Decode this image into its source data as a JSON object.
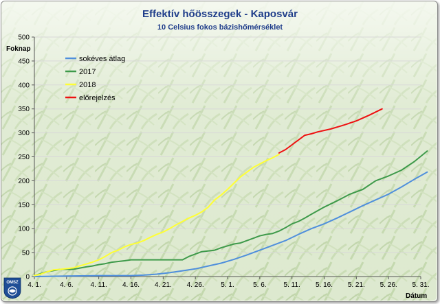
{
  "header": {
    "title": "Effektív hőösszegek - Kaposvár",
    "subtitle": "10 Celsius fokos bázishőmérséklet"
  },
  "logo": {
    "text": "OMSZ"
  },
  "colors": {
    "background": "#f3f6ef",
    "corn_light": "#d4e3c2",
    "corn_dark": "#bcd2a6",
    "grid": "#d8d8d8"
  },
  "chart_data": {
    "type": "line",
    "title": "Effektív hőösszegek - Kaposvár",
    "subtitle": "10 Celsius fokos bázishőmérséklet",
    "xlabel": "Dátum",
    "ylabel": "Foknap",
    "ylim": [
      0,
      500
    ],
    "yticks": [
      0,
      50,
      100,
      150,
      200,
      250,
      300,
      350,
      400,
      450,
      500
    ],
    "y_tick_labels": [
      "0",
      "50",
      "100",
      "150",
      "200",
      "250",
      "300",
      "350",
      "400",
      "450",
      "500"
    ],
    "x_domain_days": [
      0,
      60
    ],
    "xticks": [
      0,
      5,
      10,
      15,
      20,
      25,
      30,
      35,
      40,
      45,
      50,
      55,
      60
    ],
    "x_tick_labels": [
      "4. 1.",
      "4. 6.",
      "4. 11.",
      "4. 16.",
      "4. 21.",
      "4. 26.",
      "5. 1.",
      "5. 6.",
      "5. 11.",
      "5. 16.",
      "5. 21.",
      "5. 26.",
      "5. 31."
    ],
    "grid": "horizontal",
    "legend_position": "top-left",
    "series": [
      {
        "name": "sokéves átlag",
        "color": "#4f8fdc",
        "points": [
          [
            0,
            0
          ],
          [
            5,
            1
          ],
          [
            10,
            2
          ],
          [
            15,
            2
          ],
          [
            17,
            3
          ],
          [
            19,
            5
          ],
          [
            21,
            8
          ],
          [
            23,
            12
          ],
          [
            25,
            16
          ],
          [
            27,
            22
          ],
          [
            29,
            28
          ],
          [
            31,
            36
          ],
          [
            33,
            45
          ],
          [
            35,
            55
          ],
          [
            37,
            65
          ],
          [
            39,
            75
          ],
          [
            41,
            88
          ],
          [
            43,
            100
          ],
          [
            45,
            110
          ],
          [
            47,
            122
          ],
          [
            49,
            135
          ],
          [
            51,
            148
          ],
          [
            53,
            160
          ],
          [
            55,
            172
          ],
          [
            57,
            187
          ],
          [
            59,
            203
          ],
          [
            61,
            218
          ]
        ]
      },
      {
        "name": "2017",
        "color": "#3e9a4a",
        "points": [
          [
            0,
            2
          ],
          [
            2,
            10
          ],
          [
            4,
            15
          ],
          [
            6,
            15
          ],
          [
            8,
            20
          ],
          [
            9,
            22
          ],
          [
            10,
            25
          ],
          [
            11,
            27
          ],
          [
            12,
            30
          ],
          [
            14,
            33
          ],
          [
            15,
            35
          ],
          [
            18,
            35
          ],
          [
            22,
            35
          ],
          [
            23,
            35
          ],
          [
            24,
            42
          ],
          [
            25,
            47
          ],
          [
            26,
            52
          ],
          [
            28,
            55
          ],
          [
            29,
            60
          ],
          [
            30,
            64
          ],
          [
            31,
            68
          ],
          [
            32,
            70
          ],
          [
            34,
            80
          ],
          [
            35,
            85
          ],
          [
            36,
            88
          ],
          [
            37,
            90
          ],
          [
            38,
            95
          ],
          [
            39,
            102
          ],
          [
            40,
            110
          ],
          [
            41,
            115
          ],
          [
            42,
            122
          ],
          [
            43,
            130
          ],
          [
            45,
            145
          ],
          [
            47,
            158
          ],
          [
            49,
            172
          ],
          [
            51,
            182
          ],
          [
            53,
            200
          ],
          [
            55,
            210
          ],
          [
            57,
            222
          ],
          [
            59,
            240
          ],
          [
            61,
            262
          ]
        ]
      },
      {
        "name": "2018",
        "color": "#ffff33",
        "points": [
          [
            0,
            2
          ],
          [
            1,
            5
          ],
          [
            2,
            10
          ],
          [
            3,
            14
          ],
          [
            4,
            15
          ],
          [
            6,
            18
          ],
          [
            7,
            22
          ],
          [
            8,
            26
          ],
          [
            9,
            30
          ],
          [
            10,
            35
          ],
          [
            11,
            42
          ],
          [
            12,
            50
          ],
          [
            13,
            55
          ],
          [
            14,
            62
          ],
          [
            15,
            67
          ],
          [
            16,
            70
          ],
          [
            17,
            75
          ],
          [
            18,
            82
          ],
          [
            19,
            88
          ],
          [
            20,
            93
          ],
          [
            21,
            100
          ],
          [
            22,
            108
          ],
          [
            23,
            115
          ],
          [
            24,
            122
          ],
          [
            25,
            128
          ],
          [
            26,
            135
          ],
          [
            27,
            145
          ],
          [
            28,
            160
          ],
          [
            29,
            170
          ],
          [
            30,
            182
          ],
          [
            31,
            195
          ],
          [
            32,
            208
          ],
          [
            33,
            218
          ],
          [
            34,
            228
          ],
          [
            35,
            235
          ],
          [
            36,
            242
          ],
          [
            37,
            248
          ],
          [
            38,
            255
          ]
        ]
      },
      {
        "name": "előrejelzés",
        "color": "#ee1111",
        "points": [
          [
            38,
            258
          ],
          [
            39,
            265
          ],
          [
            40,
            275
          ],
          [
            41,
            285
          ],
          [
            42,
            295
          ],
          [
            43,
            298
          ],
          [
            44,
            302
          ],
          [
            46,
            308
          ],
          [
            48,
            316
          ],
          [
            50,
            325
          ],
          [
            52,
            337
          ],
          [
            54,
            350
          ]
        ]
      }
    ]
  }
}
